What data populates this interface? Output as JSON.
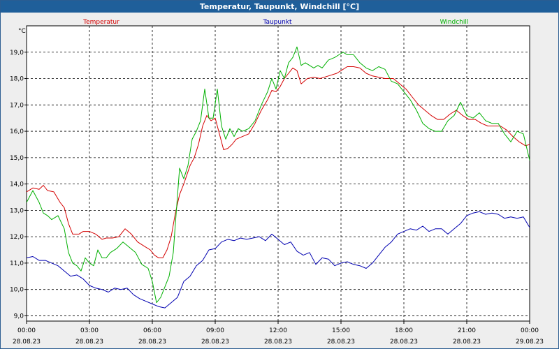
{
  "window": {
    "title": "Temperatur, Taupunkt, Windchill [°C]"
  },
  "chart_data": {
    "type": "line",
    "title": "Temperatur, Taupunkt, Windchill [°C]",
    "ylabel": "°C",
    "xlabel": "",
    "ylim": [
      8.8,
      20.0
    ],
    "xlim": [
      0,
      24
    ],
    "grid": true,
    "yticks": [
      9.0,
      10.0,
      11.0,
      12.0,
      13.0,
      14.0,
      15.0,
      16.0,
      17.0,
      18.0,
      19.0
    ],
    "ytick_labels": [
      "9,0",
      "10,0",
      "11,0",
      "12,0",
      "13,0",
      "14,0",
      "15,0",
      "16,0",
      "17,0",
      "18,0",
      "19,0"
    ],
    "xticks": [
      0,
      3,
      6,
      9,
      12,
      15,
      18,
      21,
      24
    ],
    "xtick_labels": [
      {
        "time": "00:00",
        "date": "28.08.23"
      },
      {
        "time": "03:00",
        "date": "28.08.23"
      },
      {
        "time": "06:00",
        "date": "28.08.23"
      },
      {
        "time": "09:00",
        "date": "28.08.23"
      },
      {
        "time": "12:00",
        "date": "28.08.23"
      },
      {
        "time": "15:00",
        "date": "28.08.23"
      },
      {
        "time": "18:00",
        "date": "28.08.23"
      },
      {
        "time": "21:00",
        "date": "28.08.23"
      },
      {
        "time": "00:00",
        "date": "29.08.23"
      }
    ],
    "series": [
      {
        "name": "Temperatur",
        "color": "#d40000",
        "legend_pos": "left",
        "points": [
          [
            0,
            13.7
          ],
          [
            0.3,
            13.85
          ],
          [
            0.6,
            13.8
          ],
          [
            0.8,
            13.95
          ],
          [
            1.0,
            13.75
          ],
          [
            1.3,
            13.7
          ],
          [
            1.6,
            13.3
          ],
          [
            1.8,
            13.1
          ],
          [
            2.0,
            12.5
          ],
          [
            2.2,
            12.1
          ],
          [
            2.5,
            12.1
          ],
          [
            2.7,
            12.2
          ],
          [
            3.0,
            12.2
          ],
          [
            3.3,
            12.1
          ],
          [
            3.6,
            11.9
          ],
          [
            3.8,
            11.95
          ],
          [
            4.1,
            11.95
          ],
          [
            4.4,
            12.0
          ],
          [
            4.7,
            12.3
          ],
          [
            5.0,
            12.1
          ],
          [
            5.3,
            11.8
          ],
          [
            5.6,
            11.65
          ],
          [
            5.9,
            11.5
          ],
          [
            6.1,
            11.3
          ],
          [
            6.3,
            11.2
          ],
          [
            6.5,
            11.2
          ],
          [
            6.7,
            11.5
          ],
          [
            6.9,
            12.0
          ],
          [
            7.1,
            12.9
          ],
          [
            7.3,
            13.6
          ],
          [
            7.5,
            14.0
          ],
          [
            7.8,
            14.7
          ],
          [
            8.0,
            15.0
          ],
          [
            8.2,
            15.5
          ],
          [
            8.4,
            16.2
          ],
          [
            8.6,
            16.6
          ],
          [
            8.8,
            16.4
          ],
          [
            9.0,
            16.5
          ],
          [
            9.2,
            15.9
          ],
          [
            9.4,
            15.3
          ],
          [
            9.6,
            15.35
          ],
          [
            9.8,
            15.5
          ],
          [
            10.0,
            15.7
          ],
          [
            10.3,
            15.8
          ],
          [
            10.6,
            15.9
          ],
          [
            10.9,
            16.3
          ],
          [
            11.2,
            16.8
          ],
          [
            11.5,
            17.2
          ],
          [
            11.7,
            17.55
          ],
          [
            11.9,
            17.5
          ],
          [
            12.1,
            17.7
          ],
          [
            12.3,
            18.0
          ],
          [
            12.5,
            18.2
          ],
          [
            12.7,
            18.4
          ],
          [
            12.9,
            18.3
          ],
          [
            13.1,
            17.8
          ],
          [
            13.4,
            18.0
          ],
          [
            13.7,
            18.05
          ],
          [
            14.0,
            18.0
          ],
          [
            14.4,
            18.1
          ],
          [
            14.8,
            18.2
          ],
          [
            15.0,
            18.3
          ],
          [
            15.3,
            18.45
          ],
          [
            15.6,
            18.45
          ],
          [
            15.9,
            18.4
          ],
          [
            16.2,
            18.2
          ],
          [
            16.5,
            18.1
          ],
          [
            16.8,
            18.05
          ],
          [
            17.1,
            18.0
          ],
          [
            17.5,
            18.0
          ],
          [
            17.8,
            17.8
          ],
          [
            18.1,
            17.6
          ],
          [
            18.4,
            17.3
          ],
          [
            18.7,
            17.0
          ],
          [
            19.0,
            16.8
          ],
          [
            19.3,
            16.6
          ],
          [
            19.6,
            16.45
          ],
          [
            19.9,
            16.45
          ],
          [
            20.2,
            16.65
          ],
          [
            20.5,
            16.8
          ],
          [
            20.8,
            16.6
          ],
          [
            21.1,
            16.45
          ],
          [
            21.4,
            16.45
          ],
          [
            21.7,
            16.3
          ],
          [
            22.0,
            16.2
          ],
          [
            22.3,
            16.2
          ],
          [
            22.6,
            16.2
          ],
          [
            22.9,
            16.05
          ],
          [
            23.2,
            15.8
          ],
          [
            23.5,
            15.6
          ],
          [
            23.8,
            15.45
          ],
          [
            24.0,
            15.5
          ]
        ]
      },
      {
        "name": "Taupunkt",
        "color": "#0000b0",
        "legend_pos": "center",
        "points": [
          [
            0,
            11.2
          ],
          [
            0.3,
            11.25
          ],
          [
            0.6,
            11.1
          ],
          [
            0.9,
            11.1
          ],
          [
            1.2,
            11.0
          ],
          [
            1.5,
            10.9
          ],
          [
            1.8,
            10.7
          ],
          [
            2.1,
            10.5
          ],
          [
            2.4,
            10.55
          ],
          [
            2.7,
            10.4
          ],
          [
            3.0,
            10.15
          ],
          [
            3.3,
            10.05
          ],
          [
            3.6,
            10.0
          ],
          [
            3.9,
            9.9
          ],
          [
            4.2,
            10.05
          ],
          [
            4.5,
            10.0
          ],
          [
            4.8,
            10.05
          ],
          [
            5.1,
            9.8
          ],
          [
            5.4,
            9.65
          ],
          [
            5.7,
            9.55
          ],
          [
            6.0,
            9.45
          ],
          [
            6.3,
            9.35
          ],
          [
            6.6,
            9.3
          ],
          [
            6.9,
            9.5
          ],
          [
            7.2,
            9.7
          ],
          [
            7.5,
            10.3
          ],
          [
            7.8,
            10.5
          ],
          [
            8.1,
            10.9
          ],
          [
            8.4,
            11.1
          ],
          [
            8.7,
            11.5
          ],
          [
            9.0,
            11.55
          ],
          [
            9.3,
            11.8
          ],
          [
            9.6,
            11.9
          ],
          [
            9.9,
            11.85
          ],
          [
            10.2,
            11.95
          ],
          [
            10.5,
            11.9
          ],
          [
            10.8,
            11.95
          ],
          [
            11.1,
            12.0
          ],
          [
            11.4,
            11.85
          ],
          [
            11.7,
            12.1
          ],
          [
            12.0,
            11.9
          ],
          [
            12.3,
            11.7
          ],
          [
            12.6,
            11.8
          ],
          [
            12.9,
            11.45
          ],
          [
            13.2,
            11.3
          ],
          [
            13.5,
            11.4
          ],
          [
            13.8,
            10.95
          ],
          [
            14.1,
            11.2
          ],
          [
            14.4,
            11.15
          ],
          [
            14.7,
            10.9
          ],
          [
            15.0,
            11.0
          ],
          [
            15.3,
            11.05
          ],
          [
            15.6,
            10.95
          ],
          [
            15.9,
            10.9
          ],
          [
            16.2,
            10.8
          ],
          [
            16.5,
            11.0
          ],
          [
            16.8,
            11.3
          ],
          [
            17.1,
            11.6
          ],
          [
            17.4,
            11.8
          ],
          [
            17.7,
            12.1
          ],
          [
            18.0,
            12.2
          ],
          [
            18.3,
            12.3
          ],
          [
            18.6,
            12.25
          ],
          [
            18.9,
            12.4
          ],
          [
            19.2,
            12.2
          ],
          [
            19.5,
            12.3
          ],
          [
            19.8,
            12.3
          ],
          [
            20.1,
            12.1
          ],
          [
            20.4,
            12.3
          ],
          [
            20.7,
            12.5
          ],
          [
            21.0,
            12.8
          ],
          [
            21.3,
            12.9
          ],
          [
            21.6,
            12.95
          ],
          [
            21.9,
            12.85
          ],
          [
            22.2,
            12.9
          ],
          [
            22.5,
            12.85
          ],
          [
            22.8,
            12.7
          ],
          [
            23.1,
            12.75
          ],
          [
            23.4,
            12.7
          ],
          [
            23.7,
            12.75
          ],
          [
            24.0,
            12.35
          ]
        ]
      },
      {
        "name": "Windchill",
        "color": "#00b000",
        "legend_pos": "right",
        "points": [
          [
            0,
            13.3
          ],
          [
            0.3,
            13.75
          ],
          [
            0.6,
            13.3
          ],
          [
            0.8,
            12.9
          ],
          [
            1.0,
            12.8
          ],
          [
            1.2,
            12.65
          ],
          [
            1.5,
            12.8
          ],
          [
            1.8,
            12.3
          ],
          [
            2.0,
            11.4
          ],
          [
            2.2,
            11.0
          ],
          [
            2.4,
            10.9
          ],
          [
            2.6,
            10.7
          ],
          [
            2.8,
            11.2
          ],
          [
            3.0,
            11.0
          ],
          [
            3.2,
            10.9
          ],
          [
            3.4,
            11.5
          ],
          [
            3.6,
            11.2
          ],
          [
            3.8,
            11.2
          ],
          [
            4.0,
            11.4
          ],
          [
            4.3,
            11.55
          ],
          [
            4.6,
            11.8
          ],
          [
            4.9,
            11.6
          ],
          [
            5.2,
            11.4
          ],
          [
            5.5,
            10.95
          ],
          [
            5.8,
            10.8
          ],
          [
            6.0,
            10.3
          ],
          [
            6.2,
            9.5
          ],
          [
            6.4,
            9.7
          ],
          [
            6.6,
            10.1
          ],
          [
            6.8,
            10.5
          ],
          [
            7.0,
            11.4
          ],
          [
            7.1,
            12.5
          ],
          [
            7.3,
            14.6
          ],
          [
            7.5,
            14.2
          ],
          [
            7.7,
            14.7
          ],
          [
            7.9,
            15.7
          ],
          [
            8.1,
            16.0
          ],
          [
            8.3,
            16.4
          ],
          [
            8.5,
            17.6
          ],
          [
            8.7,
            16.5
          ],
          [
            8.9,
            16.5
          ],
          [
            9.1,
            17.6
          ],
          [
            9.3,
            16.2
          ],
          [
            9.5,
            15.7
          ],
          [
            9.7,
            16.1
          ],
          [
            9.9,
            15.8
          ],
          [
            10.1,
            16.1
          ],
          [
            10.3,
            16.0
          ],
          [
            10.6,
            16.1
          ],
          [
            10.9,
            16.4
          ],
          [
            11.2,
            17.0
          ],
          [
            11.5,
            17.5
          ],
          [
            11.7,
            18.0
          ],
          [
            11.9,
            17.6
          ],
          [
            12.1,
            18.3
          ],
          [
            12.3,
            18.0
          ],
          [
            12.5,
            18.6
          ],
          [
            12.7,
            18.8
          ],
          [
            12.9,
            19.2
          ],
          [
            13.1,
            18.5
          ],
          [
            13.3,
            18.6
          ],
          [
            13.5,
            18.5
          ],
          [
            13.7,
            18.4
          ],
          [
            13.9,
            18.5
          ],
          [
            14.1,
            18.4
          ],
          [
            14.4,
            18.7
          ],
          [
            14.7,
            18.8
          ],
          [
            14.9,
            18.9
          ],
          [
            15.1,
            19.0
          ],
          [
            15.3,
            18.9
          ],
          [
            15.6,
            18.9
          ],
          [
            15.9,
            18.6
          ],
          [
            16.2,
            18.4
          ],
          [
            16.5,
            18.3
          ],
          [
            16.8,
            18.45
          ],
          [
            17.1,
            18.35
          ],
          [
            17.4,
            17.9
          ],
          [
            17.7,
            17.8
          ],
          [
            18.0,
            17.5
          ],
          [
            18.3,
            17.2
          ],
          [
            18.6,
            16.8
          ],
          [
            18.9,
            16.3
          ],
          [
            19.2,
            16.1
          ],
          [
            19.5,
            16.0
          ],
          [
            19.8,
            16.0
          ],
          [
            20.1,
            16.4
          ],
          [
            20.4,
            16.6
          ],
          [
            20.7,
            17.1
          ],
          [
            21.0,
            16.6
          ],
          [
            21.3,
            16.5
          ],
          [
            21.6,
            16.7
          ],
          [
            21.9,
            16.4
          ],
          [
            22.2,
            16.3
          ],
          [
            22.5,
            16.3
          ],
          [
            22.8,
            15.9
          ],
          [
            23.1,
            15.6
          ],
          [
            23.4,
            16.0
          ],
          [
            23.7,
            15.9
          ],
          [
            24.0,
            14.9
          ]
        ]
      }
    ]
  }
}
